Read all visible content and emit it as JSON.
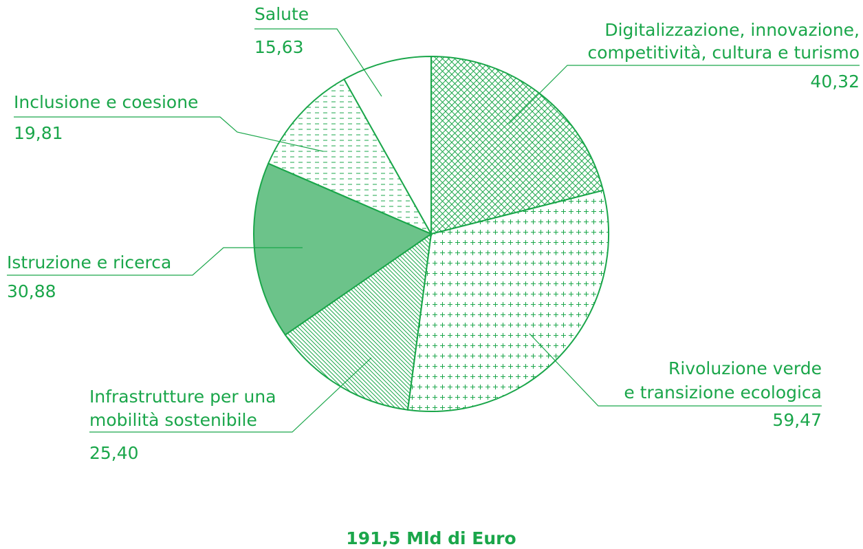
{
  "chart_data": {
    "type": "pie",
    "categories": [
      [
        "Digitalizzazione, innovazione,",
        "competitività, cultura e turismo"
      ],
      [
        "Rivoluzione verde",
        "e transizione ecologica"
      ],
      [
        "Infrastrutture per una",
        "mobilità sostenibile"
      ],
      [
        "Istruzione e ricerca"
      ],
      [
        "Inclusione e coesione"
      ],
      [
        "Salute"
      ]
    ],
    "values": [
      40.32,
      59.47,
      25.4,
      30.88,
      19.81,
      15.63
    ],
    "value_labels": [
      "40,32",
      "59,47",
      "25,40",
      "30,88",
      "19,81",
      "15,63"
    ],
    "color": "#1aa64a",
    "total_label": "191,5 Mld di Euro"
  }
}
